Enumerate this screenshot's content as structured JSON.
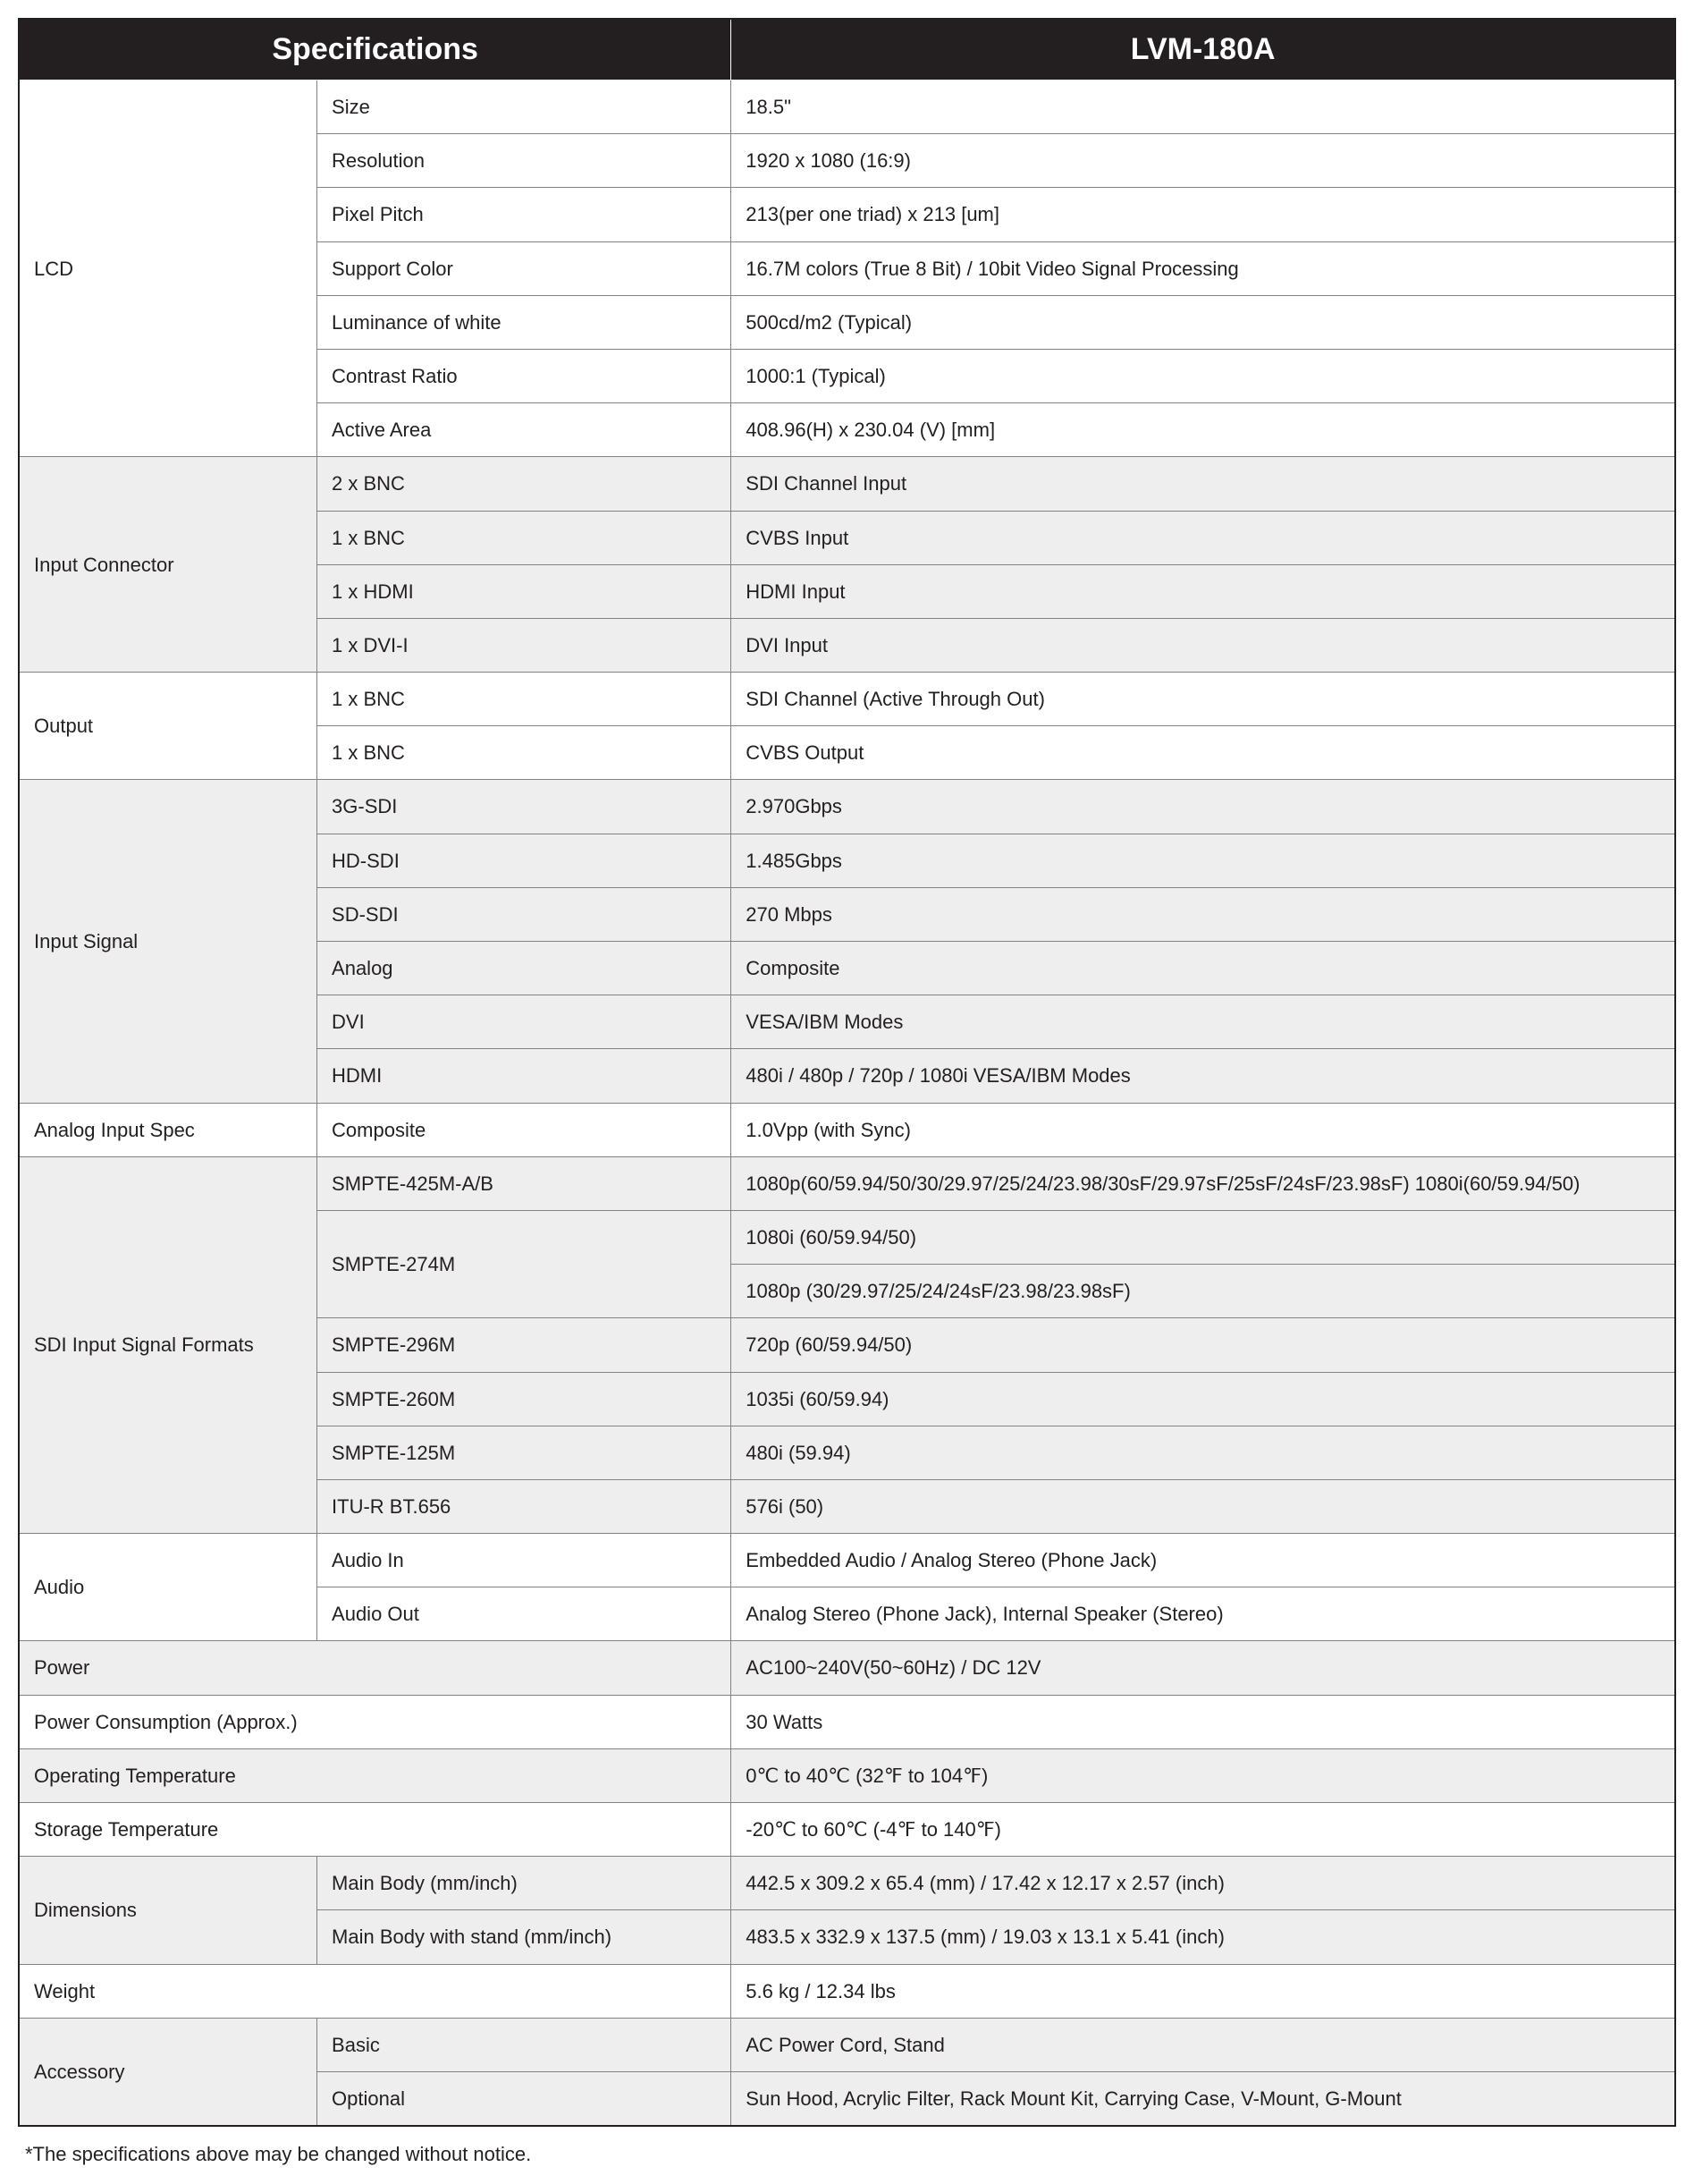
{
  "header": {
    "col1": "Specifications",
    "col2": "LVM-180A"
  },
  "footnote": "*The specifications above may be changed without notice.",
  "sections": [
    {
      "band": "a",
      "label": "LCD",
      "rows": [
        {
          "k": "Size",
          "v": "18.5\""
        },
        {
          "k": "Resolution",
          "v": "1920 x 1080 (16:9)"
        },
        {
          "k": "Pixel Pitch",
          "v": "213(per one triad) x 213 [um]"
        },
        {
          "k": "Support Color",
          "v": "16.7M colors (True 8 Bit) / 10bit Video Signal Processing"
        },
        {
          "k": "Luminance of white",
          "v": "500cd/m2 (Typical)"
        },
        {
          "k": "Contrast Ratio",
          "v": "1000:1 (Typical)"
        },
        {
          "k": "Active Area",
          "v": "408.96(H) x 230.04 (V) [mm]"
        }
      ]
    },
    {
      "band": "b",
      "label": "Input Connector",
      "rows": [
        {
          "k": "2 x BNC",
          "v": "SDI Channel Input"
        },
        {
          "k": "1 x BNC",
          "v": "CVBS Input"
        },
        {
          "k": "1 x HDMI",
          "v": "HDMI Input"
        },
        {
          "k": "1 x DVI-I",
          "v": "DVI Input"
        }
      ]
    },
    {
      "band": "a",
      "label": "Output",
      "rows": [
        {
          "k": "1 x BNC",
          "v": "SDI Channel (Active Through Out)"
        },
        {
          "k": "1 x BNC",
          "v": "CVBS Output"
        }
      ]
    },
    {
      "band": "b",
      "label": "Input Signal",
      "rows": [
        {
          "k": "3G-SDI",
          "v": "2.970Gbps"
        },
        {
          "k": "HD-SDI",
          "v": "1.485Gbps"
        },
        {
          "k": "SD-SDI",
          "v": "270 Mbps"
        },
        {
          "k": "Analog",
          "v": "Composite"
        },
        {
          "k": "DVI",
          "v": "VESA/IBM Modes"
        },
        {
          "k": "HDMI",
          "v": "480i / 480p / 720p / 1080i VESA/IBM Modes"
        }
      ]
    },
    {
      "band": "a",
      "label": "Analog Input Spec",
      "rows": [
        {
          "k": "Composite",
          "v": "1.0Vpp (with Sync)"
        }
      ]
    },
    {
      "band": "b",
      "label": "SDI Input Signal Formats",
      "rows": [
        {
          "k": "SMPTE-425M-A/B",
          "v": "1080p(60/59.94/50/30/29.97/25/24/23.98/30sF/29.97sF/25sF/24sF/23.98sF) 1080i(60/59.94/50)",
          "tall": true
        },
        {
          "k": "SMPTE-274M",
          "v": "1080i (60/59.94/50)",
          "krowspan": 2
        },
        {
          "k": "",
          "v": "1080p (30/29.97/25/24/24sF/23.98/23.98sF)",
          "nokey": true
        },
        {
          "k": "SMPTE-296M",
          "v": "720p (60/59.94/50)"
        },
        {
          "k": "SMPTE-260M",
          "v": "1035i (60/59.94)"
        },
        {
          "k": "SMPTE-125M",
          "v": "480i (59.94)"
        },
        {
          "k": "ITU-R BT.656",
          "v": "576i (50)"
        }
      ]
    },
    {
      "band": "a",
      "label": "Audio",
      "rows": [
        {
          "k": "Audio In",
          "v": "Embedded Audio / Analog Stereo (Phone Jack)"
        },
        {
          "k": "Audio Out",
          "v": "Analog Stereo (Phone Jack), Internal Speaker (Stereo)"
        }
      ]
    },
    {
      "band": "b",
      "label": "Power",
      "single": true,
      "value": "AC100~240V(50~60Hz) / DC 12V"
    },
    {
      "band": "a",
      "label": "Power Consumption (Approx.)",
      "single": true,
      "value": "30 Watts"
    },
    {
      "band": "b",
      "label": "Operating Temperature",
      "single": true,
      "value": "0℃ to 40℃ (32℉ to 104℉)"
    },
    {
      "band": "a",
      "label": "Storage Temperature",
      "single": true,
      "value": "-20℃ to 60℃ (-4℉ to 140℉)"
    },
    {
      "band": "b",
      "label": "Dimensions",
      "rows": [
        {
          "k": "Main Body (mm/inch)",
          "v": "442.5 x 309.2 x 65.4 (mm) / 17.42 x 12.17 x 2.57 (inch)"
        },
        {
          "k": "Main Body with stand (mm/inch)",
          "v": "483.5 x 332.9 x 137.5 (mm) / 19.03 x 13.1 x 5.41 (inch)"
        }
      ]
    },
    {
      "band": "a",
      "label": "Weight",
      "single": true,
      "value": "5.6 kg / 12.34 lbs"
    },
    {
      "band": "b",
      "label": "Accessory",
      "rows": [
        {
          "k": "Basic",
          "v": "AC Power Cord, Stand"
        },
        {
          "k": "Optional",
          "v": "Sun Hood, Acrylic Filter, Rack Mount Kit, Carrying Case, V-Mount, G-Mount"
        }
      ]
    }
  ]
}
